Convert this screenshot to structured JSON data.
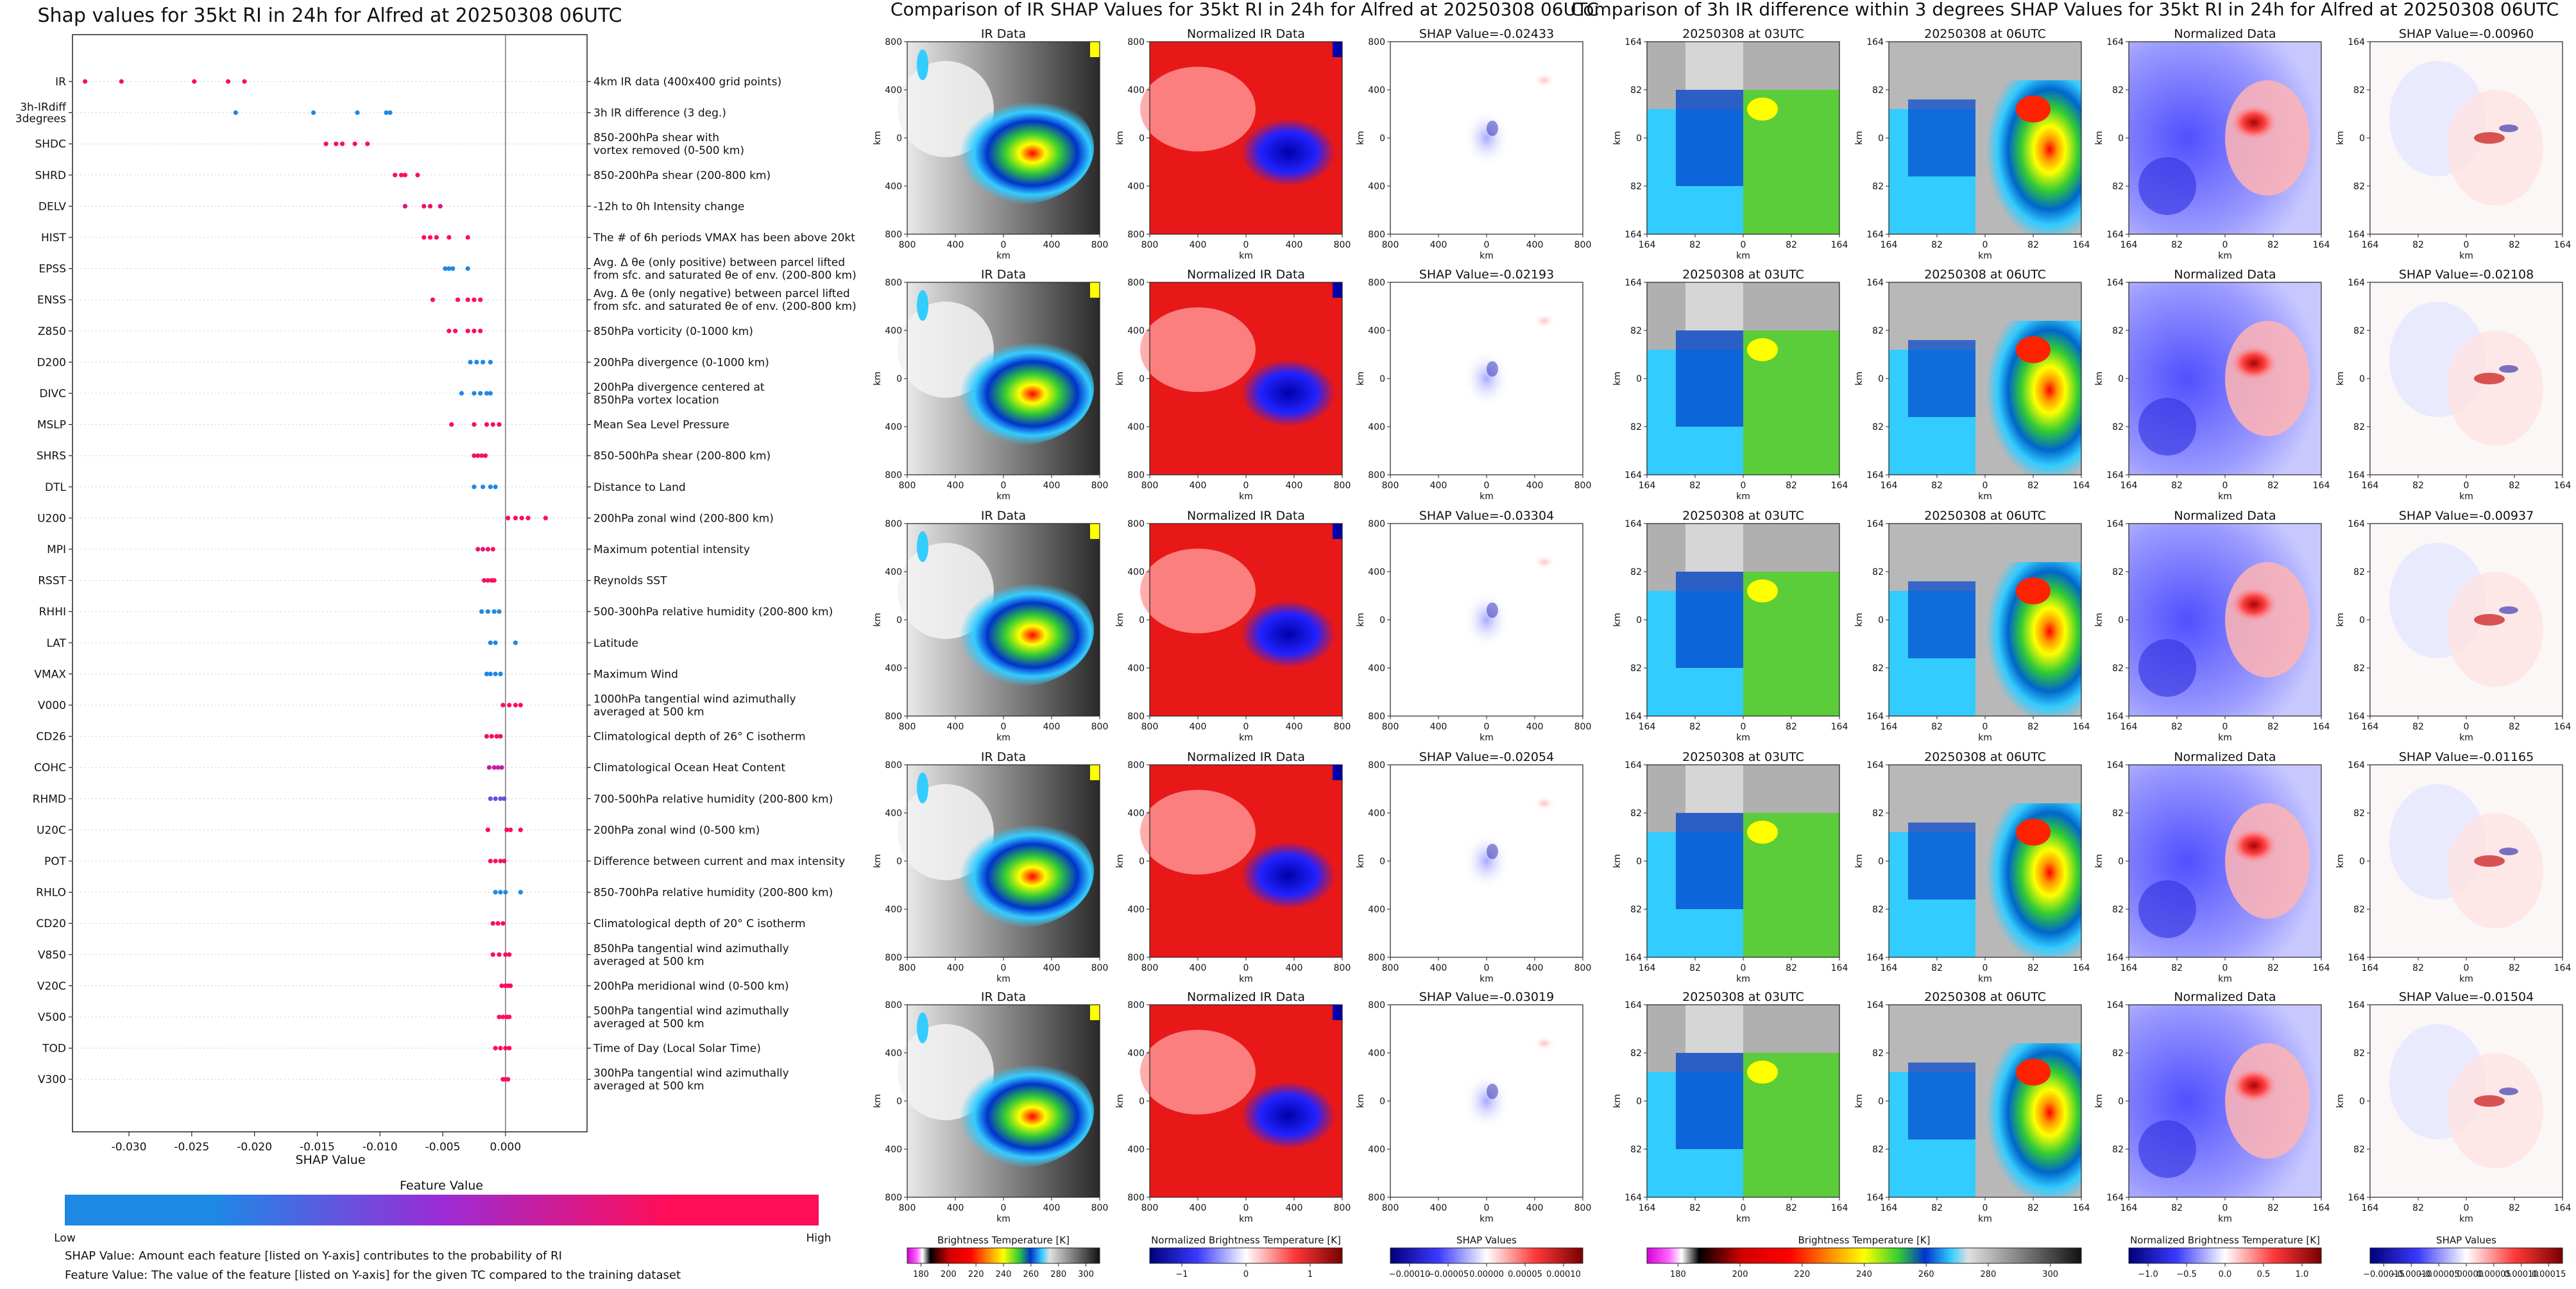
{
  "chart_data": [
    {
      "type": "scatter",
      "title": "Shap values for 35kt RI in 24h for Alfred at 20250308 06UTC",
      "xlabel": "SHAP Value",
      "xticks": [
        "-0.030",
        "-0.025",
        "-0.020",
        "-0.015",
        "-0.010",
        "-0.005",
        "0.000"
      ],
      "xtick_values": [
        -0.03,
        -0.025,
        -0.02,
        -0.015,
        -0.01,
        -0.005,
        0.0
      ],
      "xlim": [
        -0.0345,
        0.0065
      ],
      "colorbar": {
        "title": "Feature Value",
        "low": "Low",
        "high": "High",
        "low_color": "#1e88e5",
        "high_color": "#ff0d57"
      },
      "features": [
        {
          "name": "IR",
          "desc": "4km IR data (400x400 grid points)",
          "values": [
            -0.0335,
            -0.0306,
            -0.0248,
            -0.0221,
            -0.0208
          ],
          "fv": [
            0.9,
            0.95,
            0.85,
            0.9,
            0.92
          ]
        },
        {
          "name": "3h-IRdiff\n3degrees",
          "desc": "3h IR difference (3 deg.)",
          "values": [
            -0.0215,
            -0.0153,
            -0.0118,
            -0.0095,
            -0.0092
          ],
          "fv": [
            0.1,
            0.05,
            0.1,
            0.12,
            0.08
          ]
        },
        {
          "name": "SHDC",
          "desc": "850-200hPa shear with\nvortex removed (0-500 km)",
          "values": [
            -0.0143,
            -0.0135,
            -0.013,
            -0.012,
            -0.011
          ],
          "fv": [
            0.9,
            0.95,
            0.9,
            0.95,
            0.92
          ]
        },
        {
          "name": "SHRD",
          "desc": "850-200hPa shear (200-800 km)",
          "values": [
            -0.0088,
            -0.0083,
            -0.008,
            -0.007
          ],
          "fv": [
            0.9,
            0.95,
            0.9,
            0.92
          ]
        },
        {
          "name": "DELV",
          "desc": "-12h to 0h Intensity change",
          "values": [
            -0.008,
            -0.0065,
            -0.006,
            -0.0052
          ],
          "fv": [
            0.7,
            0.75,
            0.75,
            0.7
          ]
        },
        {
          "name": "HIST",
          "desc": "The # of 6h periods VMAX has been above 20kt",
          "values": [
            -0.0065,
            -0.006,
            -0.0055,
            -0.0045,
            -0.003
          ],
          "fv": [
            0.9,
            0.95,
            0.92,
            0.9,
            0.95
          ]
        },
        {
          "name": "EPSS",
          "desc": "Avg. Δ θe (only positive) between parcel lifted\nfrom sfc. and saturated θe of env. (200-800 km)",
          "values": [
            -0.0048,
            -0.0045,
            -0.0042,
            -0.003
          ],
          "fv": [
            0.1,
            0.12,
            0.1,
            0.08
          ]
        },
        {
          "name": "ENSS",
          "desc": "Avg. Δ θe (only negative) between parcel lifted\nfrom sfc. and saturated θe of env. (200-800 km)",
          "values": [
            -0.0058,
            -0.0038,
            -0.003,
            -0.0025,
            -0.002
          ],
          "fv": [
            0.9,
            0.95,
            0.9,
            0.92,
            0.9
          ]
        },
        {
          "name": "Z850",
          "desc": "850hPa vorticity (0-1000 km)",
          "values": [
            -0.0045,
            -0.004,
            -0.003,
            -0.0025,
            -0.002
          ],
          "fv": [
            0.9,
            0.92,
            0.95,
            0.9,
            0.9
          ]
        },
        {
          "name": "D200",
          "desc": "200hPa divergence (0-1000 km)",
          "values": [
            -0.0028,
            -0.0023,
            -0.0018,
            -0.0012
          ],
          "fv": [
            0.1,
            0.1,
            0.12,
            0.1
          ]
        },
        {
          "name": "DIVC",
          "desc": "200hPa divergence centered at\n850hPa vortex location",
          "values": [
            -0.0035,
            -0.0025,
            -0.002,
            -0.0015,
            -0.0012
          ],
          "fv": [
            0.1,
            0.12,
            0.1,
            0.1,
            0.12
          ]
        },
        {
          "name": "MSLP",
          "desc": "Mean Sea Level Pressure",
          "values": [
            -0.0043,
            -0.0025,
            -0.0015,
            -0.001,
            -0.0005
          ],
          "fv": [
            0.9,
            0.95,
            0.9,
            0.9,
            0.92
          ]
        },
        {
          "name": "SHRS",
          "desc": "850-500hPa shear (200-800 km)",
          "values": [
            -0.0025,
            -0.0022,
            -0.0019,
            -0.0016
          ],
          "fv": [
            0.75,
            0.8,
            0.75,
            0.8
          ]
        },
        {
          "name": "DTL",
          "desc": "Distance to Land",
          "values": [
            -0.0025,
            -0.0018,
            -0.0012,
            -0.0008
          ],
          "fv": [
            0.1,
            0.12,
            0.1,
            0.1
          ]
        },
        {
          "name": "U200",
          "desc": "200hPa zonal wind (200-800 km)",
          "values": [
            0.0002,
            0.0008,
            0.0013,
            0.0018,
            0.0032
          ],
          "fv": [
            0.9,
            0.95,
            0.9,
            0.92,
            0.95
          ]
        },
        {
          "name": "MPI",
          "desc": "Maximum potential intensity",
          "values": [
            -0.0022,
            -0.0018,
            -0.0014,
            -0.001
          ],
          "fv": [
            0.75,
            0.7,
            0.75,
            0.8
          ]
        },
        {
          "name": "RSST",
          "desc": "Reynolds SST",
          "values": [
            -0.0017,
            -0.0014,
            -0.0011,
            -0.0009
          ],
          "fv": [
            0.8,
            0.75,
            0.8,
            0.8
          ]
        },
        {
          "name": "RHHI",
          "desc": "500-300hPa relative humidity (200-800 km)",
          "values": [
            -0.0019,
            -0.0014,
            -0.0009,
            -0.0005
          ],
          "fv": [
            0.1,
            0.12,
            0.1,
            0.1
          ]
        },
        {
          "name": "LAT",
          "desc": "Latitude",
          "values": [
            -0.0012,
            -0.0008,
            0.0008
          ],
          "fv": [
            0.1,
            0.12,
            0.08
          ]
        },
        {
          "name": "VMAX",
          "desc": "Maximum Wind",
          "values": [
            -0.0015,
            -0.0012,
            -0.0008,
            -0.0004
          ],
          "fv": [
            0.1,
            0.12,
            0.1,
            0.1
          ]
        },
        {
          "name": "V000",
          "desc": "1000hPa tangential wind azimuthally\naveraged at 500 km",
          "values": [
            -0.0002,
            0.0003,
            0.0008,
            0.0012
          ],
          "fv": [
            0.9,
            0.9,
            0.92,
            0.95
          ]
        },
        {
          "name": "CD26",
          "desc": "Climatological depth of 26° C isotherm",
          "values": [
            -0.0015,
            -0.0011,
            -0.0007,
            -0.0004
          ],
          "fv": [
            0.75,
            0.8,
            0.8,
            0.75
          ]
        },
        {
          "name": "COHC",
          "desc": "Climatological Ocean Heat Content",
          "values": [
            -0.0013,
            -0.0009,
            -0.0006,
            -0.0003
          ],
          "fv": [
            0.6,
            0.65,
            0.6,
            0.62
          ]
        },
        {
          "name": "RHMD",
          "desc": "700-500hPa relative humidity (200-800 km)",
          "values": [
            -0.0012,
            -0.0008,
            -0.0004,
            -0.0001
          ],
          "fv": [
            0.35,
            0.4,
            0.35,
            0.38
          ]
        },
        {
          "name": "U20C",
          "desc": "200hPa zonal wind (0-500 km)",
          "values": [
            -0.0014,
            0.0001,
            0.0004,
            0.0012
          ],
          "fv": [
            0.9,
            0.92,
            0.95,
            0.9
          ]
        },
        {
          "name": "POT",
          "desc": "Difference between current and max intensity",
          "values": [
            -0.0012,
            -0.0008,
            -0.0004,
            -0.0001
          ],
          "fv": [
            0.75,
            0.8,
            0.75,
            0.78
          ]
        },
        {
          "name": "RHLO",
          "desc": "850-700hPa relative humidity (200-800 km)",
          "values": [
            -0.0008,
            -0.0004,
            0.0,
            0.0012
          ],
          "fv": [
            0.1,
            0.12,
            0.1,
            0.1
          ]
        },
        {
          "name": "CD20",
          "desc": "Climatological depth of 20° C isotherm",
          "values": [
            -0.001,
            -0.0006,
            -0.0002
          ],
          "fv": [
            0.9,
            0.92,
            0.95
          ]
        },
        {
          "name": "V850",
          "desc": "850hPa tangential wind azimuthally\naveraged at 500 km",
          "values": [
            -0.001,
            -0.0005,
            0.0,
            0.0003
          ],
          "fv": [
            0.9,
            0.92,
            0.95,
            0.9
          ]
        },
        {
          "name": "V20C",
          "desc": "200hPa meridional wind (0-500 km)",
          "values": [
            -0.0003,
            0.0,
            0.0002,
            0.0004
          ],
          "fv": [
            0.9,
            0.92,
            0.95,
            0.9
          ]
        },
        {
          "name": "V500",
          "desc": "500hPa tangential wind azimuthally\naveraged at 500 km",
          "values": [
            -0.0005,
            -0.0002,
            0.0001,
            0.0003
          ],
          "fv": [
            0.9,
            0.92,
            0.95,
            0.9
          ]
        },
        {
          "name": "TOD",
          "desc": "Time of Day (Local Solar Time)",
          "values": [
            -0.0008,
            -0.0004,
            0.0,
            0.0003
          ],
          "fv": [
            0.9,
            0.92,
            0.95,
            0.9
          ]
        },
        {
          "name": "V300",
          "desc": "300hPa tangential wind azimuthally\naveraged at 500 km",
          "values": [
            -0.0002,
            0.0,
            0.0002
          ],
          "fv": [
            0.9,
            0.92,
            0.95
          ]
        }
      ]
    },
    {
      "type": "heatmap",
      "title": "Comparison of IR SHAP Values for 35kt RI in 24h for Alfred at 20250308 06UTC",
      "xlabel": "km",
      "ylabel": "km",
      "x_ticks": [
        "800",
        "400",
        "0",
        "400",
        "800"
      ],
      "y_ticks": [
        "800",
        "400",
        "0",
        "400",
        "800"
      ],
      "panel_titles": [
        "IR Data",
        "Normalized IR Data"
      ],
      "shap_values": [
        "SHAP Value=-0.02433",
        "SHAP Value=-0.02193",
        "SHAP Value=-0.03304",
        "SHAP Value=-0.02054",
        "SHAP Value=-0.03019"
      ],
      "colorbars": [
        {
          "label": "Brightness Temperature [K]",
          "ticks": [
            "180",
            "200",
            "220",
            "240",
            "260",
            "280",
            "300"
          ]
        },
        {
          "label": "Normalized Brightness Temperature [K]",
          "ticks": [
            "−1",
            "0",
            "1"
          ]
        },
        {
          "label": "SHAP Values",
          "ticks": [
            "−0.00010",
            "−0.00005",
            "0.00000",
            "0.00005",
            "0.00010"
          ]
        }
      ]
    },
    {
      "type": "heatmap",
      "title": "Comparison of 3h IR difference within 3 degrees SHAP Values for 35kt RI in 24h for Alfred at 20250308 06UTC",
      "xlabel": "km",
      "ylabel": "km",
      "x_ticks": [
        "164",
        "82",
        "0",
        "82",
        "164"
      ],
      "y_ticks": [
        "164",
        "82",
        "0",
        "82",
        "164"
      ],
      "panel_titles": [
        "20250308 at 03UTC",
        "20250308 at 06UTC",
        "Normalized Data"
      ],
      "shap_values": [
        "SHAP Value=-0.00960",
        "SHAP Value=-0.02108",
        "SHAP Value=-0.00937",
        "SHAP Value=-0.01165",
        "SHAP Value=-0.01504"
      ],
      "colorbars": [
        {
          "label": "Brightness Temperature [K]",
          "ticks": [
            "180",
            "200",
            "220",
            "240",
            "260",
            "280",
            "300"
          ]
        },
        {
          "label": "Normalized Brightness Temperature [K]",
          "ticks": [
            "−1.0",
            "−0.5",
            "0.0",
            "0.5",
            "1.0"
          ]
        },
        {
          "label": "SHAP Values",
          "ticks": [
            "−0.00015",
            "−0.00010",
            "−0.00005",
            "0.00000",
            "0.00005",
            "0.00010",
            "0.00015"
          ]
        }
      ]
    }
  ],
  "notes": {
    "line1": "SHAP Value: Amount each feature [listed on Y-axis] contributes to the probability of RI",
    "line2": "Feature Value: The value of the feature [listed on Y-axis] for the given TC compared to the training dataset"
  },
  "colors": {
    "low": "#1e88e5",
    "mid": "#9b2bd6",
    "high": "#ff0d57"
  }
}
